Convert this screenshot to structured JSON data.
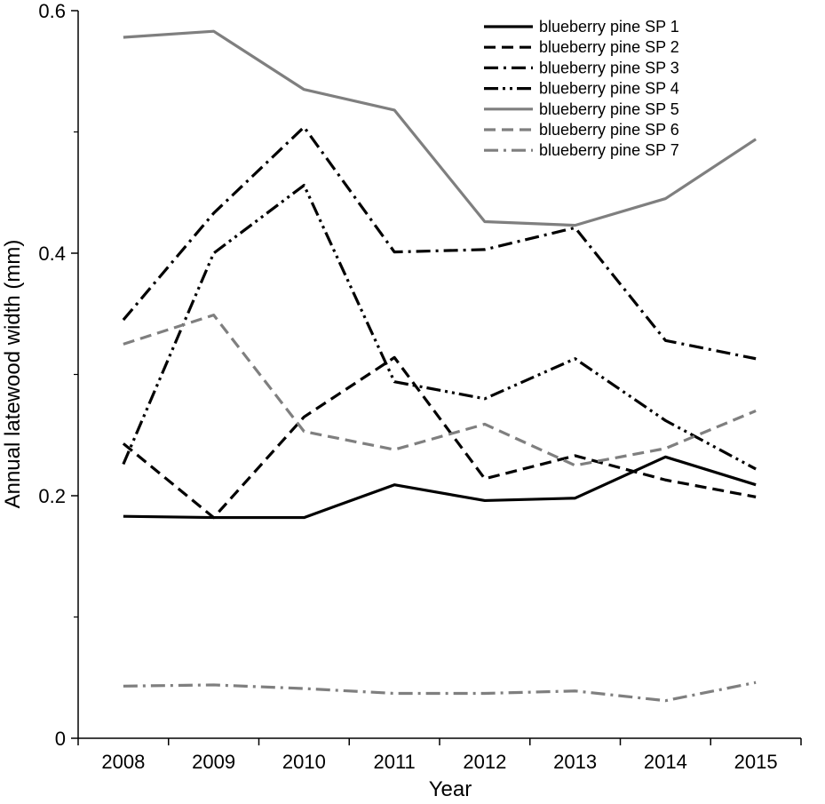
{
  "chart_data": {
    "type": "line",
    "title": "",
    "xlabel": "Year",
    "ylabel": "Annual latewood width (mm)",
    "x": [
      "2008",
      "2009",
      "2010",
      "2011",
      "2012",
      "2013",
      "2014",
      "2015"
    ],
    "xlim": [
      2007.5,
      2015.5
    ],
    "ylim": [
      0,
      0.6
    ],
    "yticks": [
      0,
      0.2,
      0.4,
      0.6
    ],
    "ytick_labels": [
      "0",
      "0.2",
      "0.4",
      "0.6"
    ],
    "grid": false,
    "legend_position": "top-right",
    "series": [
      {
        "name": "blueberry pine SP 1",
        "values": [
          0.183,
          0.182,
          0.182,
          0.209,
          0.196,
          0.198,
          0.232,
          0.209
        ],
        "color": "#000000",
        "style": "solid"
      },
      {
        "name": "blueberry pine SP 2",
        "values": [
          0.243,
          0.182,
          0.265,
          0.314,
          0.214,
          0.233,
          0.213,
          0.199
        ],
        "color": "#000000",
        "style": "dashed"
      },
      {
        "name": "blueberry pine SP 3",
        "values": [
          0.345,
          0.433,
          0.504,
          0.401,
          0.403,
          0.421,
          0.328,
          0.313
        ],
        "color": "#000000",
        "style": "dash-dot"
      },
      {
        "name": "blueberry pine SP 4",
        "values": [
          0.226,
          0.4,
          0.456,
          0.294,
          0.28,
          0.313,
          0.262,
          0.222
        ],
        "color": "#000000",
        "style": "dash-dot-dot"
      },
      {
        "name": "blueberry pine SP 5",
        "values": [
          0.578,
          0.583,
          0.535,
          0.518,
          0.426,
          0.423,
          0.445,
          0.494
        ],
        "color": "#7f7f7f",
        "style": "solid"
      },
      {
        "name": "blueberry pine SP 6",
        "values": [
          0.325,
          0.349,
          0.253,
          0.238,
          0.259,
          0.225,
          0.239,
          0.27
        ],
        "color": "#7f7f7f",
        "style": "dashed"
      },
      {
        "name": "blueberry pine SP 7",
        "values": [
          0.043,
          0.044,
          0.041,
          0.037,
          0.037,
          0.039,
          0.031,
          0.046
        ],
        "color": "#7f7f7f",
        "style": "dash-dot"
      }
    ]
  }
}
